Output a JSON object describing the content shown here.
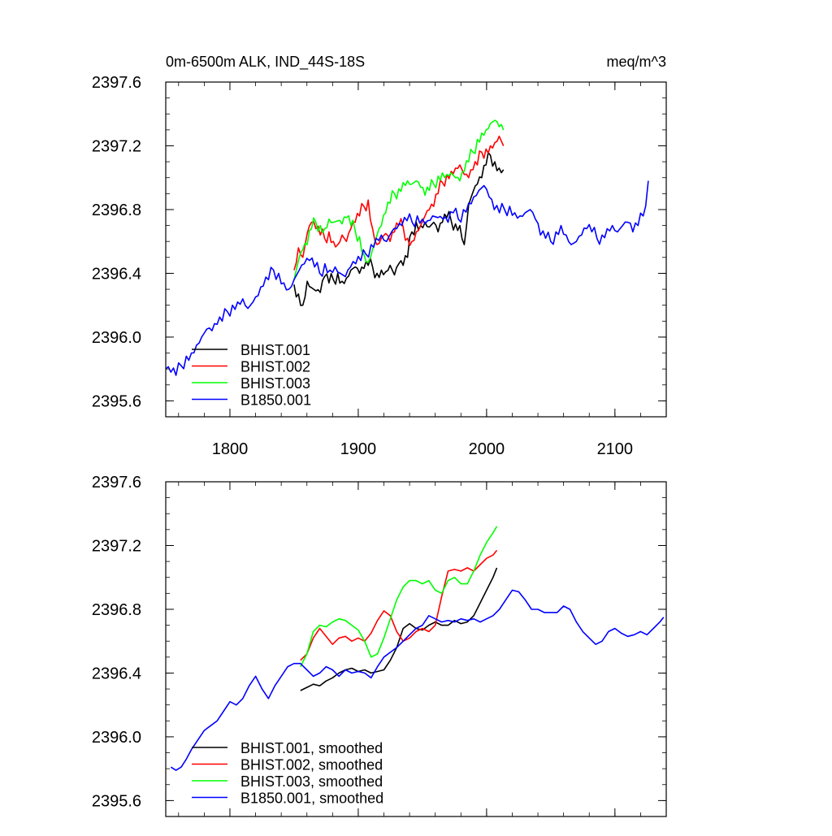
{
  "chart_data": [
    {
      "type": "line",
      "title": "0m-6500m ALK, IND_44S-18S",
      "units": "meq/m^3",
      "xlim": [
        1750,
        2140
      ],
      "ylim": [
        2395.5,
        2397.6
      ],
      "xticks": [
        "1800",
        "1900",
        "2000",
        "2100"
      ],
      "xtick_values": [
        1800,
        1900,
        2000,
        2100
      ],
      "yticks": [
        "2397.6",
        "2397.2",
        "2396.8",
        "2396.4",
        "2396.0",
        "2395.6"
      ],
      "ytick_values": [
        2397.6,
        2397.2,
        2396.8,
        2396.4,
        2396.0,
        2395.6
      ],
      "legend_position": "bottom-left",
      "series": [
        {
          "name": "BHIST.001",
          "color": "#000000",
          "start": 1850,
          "values": [
            2396.33,
            2396.27,
            2396.2,
            2396.35,
            2396.31,
            2396.29,
            2396.28,
            2396.38,
            2396.34,
            2396.36,
            2396.4,
            2396.35,
            2396.37,
            2396.42,
            2396.44,
            2396.4,
            2396.43,
            2396.45,
            2396.44,
            2396.4,
            2396.42,
            2396.41,
            2396.45,
            2396.39,
            2396.46,
            2396.45,
            2396.5,
            2396.66,
            2396.72,
            2396.7,
            2396.72,
            2396.69,
            2396.72,
            2396.66,
            2396.72,
            2396.75,
            2396.73,
            2396.71,
            2396.7,
            2396.58,
            2396.83,
            2396.91,
            2396.96,
            2397.0,
            2397.08,
            2397.14,
            2397.1,
            2397.06,
            2397.05
          ]
        },
        {
          "name": "BHIST.002",
          "color": "#ff0000",
          "start": 1850,
          "values": [
            2396.42,
            2396.56,
            2396.5,
            2396.65,
            2396.72,
            2396.68,
            2396.64,
            2396.62,
            2396.66,
            2396.6,
            2396.58,
            2396.64,
            2396.6,
            2396.68,
            2396.72,
            2396.76,
            2396.82,
            2396.86,
            2396.68,
            2396.58,
            2396.62,
            2396.65,
            2396.6,
            2396.66,
            2396.7,
            2396.69,
            2396.62,
            2396.6,
            2396.66,
            2396.7,
            2396.76,
            2396.8,
            2396.82,
            2396.9,
            2396.97,
            2397.02,
            2397.04,
            2397.06,
            2397.08,
            2397.02,
            2397.0,
            2397.05,
            2397.08,
            2397.16,
            2397.18,
            2397.2,
            2397.22,
            2397.26,
            2397.2
          ]
        },
        {
          "name": "BHIST.003",
          "color": "#00ff00",
          "start": 1850,
          "values": [
            2396.36,
            2396.48,
            2396.55,
            2396.58,
            2396.68,
            2396.72,
            2396.7,
            2396.68,
            2396.74,
            2396.72,
            2396.73,
            2396.71,
            2396.75,
            2396.7,
            2396.67,
            2396.63,
            2396.52,
            2396.47,
            2396.55,
            2396.64,
            2396.7,
            2396.78,
            2396.84,
            2396.9,
            2396.93,
            2396.97,
            2396.98,
            2396.96,
            2396.98,
            2396.94,
            2396.89,
            2396.92,
            2396.96,
            2397.01,
            2397.03,
            2397.02,
            2397.03,
            2397.0,
            2396.98,
            2397.04,
            2397.1,
            2397.16,
            2397.24,
            2397.28,
            2397.3,
            2397.34,
            2397.36,
            2397.32,
            2397.3
          ]
        },
        {
          "name": "B1850.001",
          "color": "#0000ff",
          "start": 1750,
          "values": [
            2395.8,
            2395.78,
            2395.76,
            2395.82,
            2395.88,
            2395.9,
            2395.95,
            2396.0,
            2396.05,
            2396.04,
            2396.08,
            2396.1,
            2396.16,
            2396.2,
            2396.22,
            2396.24,
            2396.18,
            2396.22,
            2396.26,
            2396.32,
            2396.36,
            2396.42,
            2396.4,
            2396.34,
            2396.3,
            2396.36,
            2396.42,
            2396.46,
            2396.48,
            2396.44,
            2396.4,
            2396.46,
            2396.42,
            2396.44,
            2396.4,
            2396.38,
            2396.44,
            2396.46,
            2396.48,
            2396.52,
            2396.58,
            2396.62,
            2396.64,
            2396.6,
            2396.66,
            2396.68,
            2396.7,
            2396.73,
            2396.72,
            2396.76,
            2396.74,
            2396.73,
            2396.76,
            2396.75,
            2396.74,
            2396.72,
            2396.78,
            2396.74,
            2396.8,
            2396.84,
            2396.88,
            2396.92,
            2396.95,
            2396.88,
            2396.8,
            2396.78,
            2396.8,
            2396.82,
            2396.78,
            2396.76,
            2396.78,
            2396.8,
            2396.74,
            2396.64,
            2396.62,
            2396.6,
            2396.66,
            2396.7,
            2396.64,
            2396.58,
            2396.6,
            2396.64,
            2396.68,
            2396.66,
            2396.62,
            2396.64,
            2396.68,
            2396.7,
            2396.66,
            2396.7,
            2396.72,
            2396.66,
            2396.7,
            2396.76,
            2396.98
          ]
        }
      ]
    },
    {
      "type": "line",
      "xlim": [
        1750,
        2140
      ],
      "ylim": [
        2395.5,
        2397.6
      ],
      "xtick_values": [
        1800,
        1900,
        2000,
        2100
      ],
      "yticks": [
        "2397.6",
        "2397.2",
        "2396.8",
        "2396.4",
        "2396.0",
        "2395.6"
      ],
      "ytick_values": [
        2397.6,
        2397.2,
        2396.8,
        2396.4,
        2396.0,
        2395.6
      ],
      "legend_position": "bottom-left",
      "series": [
        {
          "name": "BHIST.001, smoothed",
          "color": "#000000",
          "start": 1855,
          "step": 5,
          "points": [
            [
              1855,
              2396.29
            ],
            [
              1860,
              2396.31
            ],
            [
              1865,
              2396.33
            ],
            [
              1870,
              2396.32
            ],
            [
              1875,
              2396.35
            ],
            [
              1880,
              2396.37
            ],
            [
              1885,
              2396.4
            ],
            [
              1890,
              2396.42
            ],
            [
              1895,
              2396.43
            ],
            [
              1900,
              2396.41
            ],
            [
              1905,
              2396.42
            ],
            [
              1910,
              2396.4
            ],
            [
              1915,
              2396.41
            ],
            [
              1920,
              2396.42
            ],
            [
              1925,
              2396.48
            ],
            [
              1930,
              2396.56
            ],
            [
              1935,
              2396.68
            ],
            [
              1940,
              2396.71
            ],
            [
              1945,
              2396.68
            ],
            [
              1950,
              2396.67
            ],
            [
              1955,
              2396.7
            ],
            [
              1960,
              2396.72
            ],
            [
              1965,
              2396.7
            ],
            [
              1970,
              2396.7
            ],
            [
              1975,
              2396.73
            ],
            [
              1980,
              2396.71
            ],
            [
              1985,
              2396.72
            ],
            [
              1990,
              2396.76
            ],
            [
              1995,
              2396.84
            ],
            [
              2000,
              2396.92
            ],
            [
              2005,
              2397.0
            ],
            [
              2008,
              2397.06
            ]
          ]
        },
        {
          "name": "BHIST.002, smoothed",
          "color": "#ff0000",
          "start": 1855,
          "step": 5,
          "points": [
            [
              1855,
              2396.48
            ],
            [
              1860,
              2396.52
            ],
            [
              1865,
              2396.62
            ],
            [
              1870,
              2396.68
            ],
            [
              1875,
              2396.63
            ],
            [
              1880,
              2396.58
            ],
            [
              1885,
              2396.62
            ],
            [
              1890,
              2396.63
            ],
            [
              1895,
              2396.6
            ],
            [
              1900,
              2396.62
            ],
            [
              1905,
              2396.6
            ],
            [
              1910,
              2396.65
            ],
            [
              1915,
              2396.73
            ],
            [
              1920,
              2396.79
            ],
            [
              1925,
              2396.76
            ],
            [
              1930,
              2396.66
            ],
            [
              1935,
              2396.6
            ],
            [
              1940,
              2396.62
            ],
            [
              1945,
              2396.66
            ],
            [
              1950,
              2396.68
            ],
            [
              1955,
              2396.66
            ],
            [
              1960,
              2396.7
            ],
            [
              1965,
              2396.88
            ],
            [
              1970,
              2397.04
            ],
            [
              1975,
              2397.05
            ],
            [
              1980,
              2397.04
            ],
            [
              1985,
              2397.06
            ],
            [
              1990,
              2397.04
            ],
            [
              1995,
              2397.08
            ],
            [
              2000,
              2397.12
            ],
            [
              2005,
              2397.14
            ],
            [
              2008,
              2397.17
            ]
          ]
        },
        {
          "name": "BHIST.003, smoothed",
          "color": "#00ff00",
          "start": 1855,
          "step": 5,
          "points": [
            [
              1855,
              2396.44
            ],
            [
              1860,
              2396.52
            ],
            [
              1865,
              2396.66
            ],
            [
              1870,
              2396.7
            ],
            [
              1875,
              2396.69
            ],
            [
              1880,
              2396.72
            ],
            [
              1885,
              2396.74
            ],
            [
              1890,
              2396.73
            ],
            [
              1895,
              2396.7
            ],
            [
              1900,
              2396.67
            ],
            [
              1905,
              2396.6
            ],
            [
              1910,
              2396.5
            ],
            [
              1915,
              2396.52
            ],
            [
              1920,
              2396.62
            ],
            [
              1925,
              2396.74
            ],
            [
              1930,
              2396.86
            ],
            [
              1935,
              2396.94
            ],
            [
              1940,
              2396.98
            ],
            [
              1945,
              2396.98
            ],
            [
              1950,
              2396.96
            ],
            [
              1955,
              2396.98
            ],
            [
              1960,
              2396.92
            ],
            [
              1965,
              2396.9
            ],
            [
              1970,
              2396.98
            ],
            [
              1975,
              2397.0
            ],
            [
              1980,
              2396.96
            ],
            [
              1985,
              2396.96
            ],
            [
              1990,
              2397.04
            ],
            [
              1995,
              2397.14
            ],
            [
              2000,
              2397.22
            ],
            [
              2005,
              2397.28
            ],
            [
              2008,
              2397.32
            ]
          ]
        },
        {
          "name": "B1850.001, smoothed",
          "color": "#0000ff",
          "start": 1754,
          "points": [
            [
              1754,
              2395.81
            ],
            [
              1758,
              2395.79
            ],
            [
              1762,
              2395.81
            ],
            [
              1766,
              2395.86
            ],
            [
              1770,
              2395.92
            ],
            [
              1775,
              2395.98
            ],
            [
              1780,
              2396.04
            ],
            [
              1785,
              2396.07
            ],
            [
              1790,
              2396.1
            ],
            [
              1795,
              2396.16
            ],
            [
              1800,
              2396.22
            ],
            [
              1805,
              2396.2
            ],
            [
              1810,
              2396.24
            ],
            [
              1815,
              2396.32
            ],
            [
              1820,
              2396.38
            ],
            [
              1825,
              2396.3
            ],
            [
              1830,
              2396.24
            ],
            [
              1835,
              2396.32
            ],
            [
              1840,
              2396.38
            ],
            [
              1845,
              2396.44
            ],
            [
              1850,
              2396.46
            ],
            [
              1855,
              2396.46
            ],
            [
              1860,
              2396.42
            ],
            [
              1865,
              2396.38
            ],
            [
              1870,
              2396.4
            ],
            [
              1875,
              2396.44
            ],
            [
              1880,
              2396.42
            ],
            [
              1885,
              2396.38
            ],
            [
              1890,
              2396.42
            ],
            [
              1895,
              2396.4
            ],
            [
              1900,
              2396.41
            ],
            [
              1905,
              2396.4
            ],
            [
              1910,
              2396.37
            ],
            [
              1915,
              2396.44
            ],
            [
              1920,
              2396.5
            ],
            [
              1925,
              2396.53
            ],
            [
              1930,
              2396.56
            ],
            [
              1935,
              2396.6
            ],
            [
              1940,
              2396.64
            ],
            [
              1945,
              2396.68
            ],
            [
              1950,
              2396.7
            ],
            [
              1955,
              2396.76
            ],
            [
              1960,
              2396.74
            ],
            [
              1965,
              2396.72
            ],
            [
              1970,
              2396.73
            ],
            [
              1975,
              2396.72
            ],
            [
              1980,
              2396.74
            ],
            [
              1985,
              2396.73
            ],
            [
              1990,
              2396.74
            ],
            [
              1995,
              2396.72
            ],
            [
              2000,
              2396.74
            ],
            [
              2005,
              2396.76
            ],
            [
              2010,
              2396.8
            ],
            [
              2015,
              2396.86
            ],
            [
              2020,
              2396.92
            ],
            [
              2025,
              2396.91
            ],
            [
              2030,
              2396.86
            ],
            [
              2035,
              2396.8
            ],
            [
              2040,
              2396.8
            ],
            [
              2045,
              2396.78
            ],
            [
              2050,
              2396.78
            ],
            [
              2055,
              2396.78
            ],
            [
              2060,
              2396.82
            ],
            [
              2065,
              2396.8
            ],
            [
              2070,
              2396.72
            ],
            [
              2075,
              2396.66
            ],
            [
              2080,
              2396.62
            ],
            [
              2085,
              2396.58
            ],
            [
              2090,
              2396.6
            ],
            [
              2095,
              2396.66
            ],
            [
              2100,
              2396.68
            ],
            [
              2105,
              2396.65
            ],
            [
              2110,
              2396.63
            ],
            [
              2115,
              2396.64
            ],
            [
              2120,
              2396.66
            ],
            [
              2125,
              2396.64
            ],
            [
              2130,
              2396.68
            ],
            [
              2135,
              2396.72
            ],
            [
              2138,
              2396.75
            ]
          ]
        }
      ]
    }
  ]
}
